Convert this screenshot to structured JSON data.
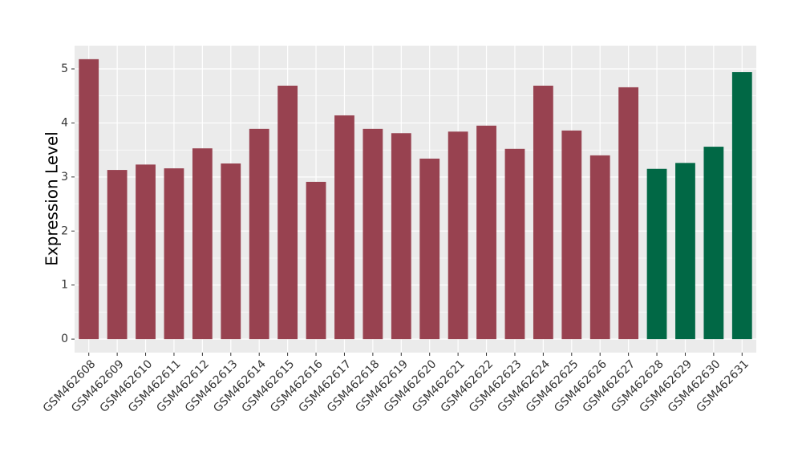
{
  "chart_data": {
    "type": "bar",
    "y_label": "Expression Level",
    "categories": [
      "GSM462608",
      "GSM462609",
      "GSM462610",
      "GSM462611",
      "GSM462612",
      "GSM462613",
      "GSM462614",
      "GSM462615",
      "GSM462616",
      "GSM462617",
      "GSM462618",
      "GSM462619",
      "GSM462620",
      "GSM462621",
      "GSM462622",
      "GSM462623",
      "GSM462624",
      "GSM462625",
      "GSM462626",
      "GSM462627",
      "GSM462628",
      "GSM462629",
      "GSM462630",
      "GSM462631"
    ],
    "values": [
      5.18,
      3.13,
      3.23,
      3.16,
      3.53,
      3.25,
      3.89,
      4.69,
      2.91,
      4.14,
      3.89,
      3.81,
      3.34,
      3.84,
      3.95,
      3.52,
      4.69,
      3.86,
      3.4,
      4.66,
      3.15,
      3.26,
      3.56,
      4.94
    ],
    "colors": [
      "#984250",
      "#984250",
      "#984250",
      "#984250",
      "#984250",
      "#984250",
      "#984250",
      "#984250",
      "#984250",
      "#984250",
      "#984250",
      "#984250",
      "#984250",
      "#984250",
      "#984250",
      "#984250",
      "#984250",
      "#984250",
      "#984250",
      "#984250",
      "#016845",
      "#016845",
      "#016845",
      "#016845"
    ],
    "ylim": [
      -0.25,
      5.43
    ],
    "yticks": [
      0,
      1,
      2,
      3,
      4,
      5
    ],
    "grid": true
  }
}
